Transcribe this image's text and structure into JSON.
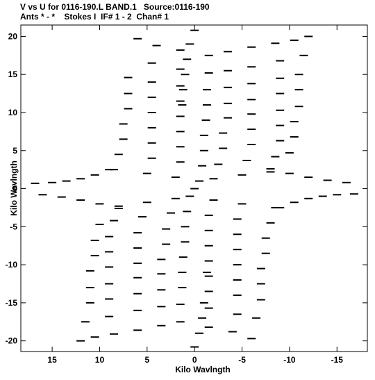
{
  "header": {
    "line1": "V vs U for 0116-190.L BAND.1   Source:0116-190",
    "line2": "Ants * - *    Stokes I  IF# 1 - 2  Chan# 1"
  },
  "chart_data": {
    "type": "scatter",
    "title": "V vs U for 0116-190.L BAND.1   Source:0116-190",
    "subtitle": "Ants * - *    Stokes I  IF# 1 - 2  Chan# 1",
    "xlabel": "Kilo Wavlngth",
    "ylabel": "Kilo Wavlngth",
    "xlim": [
      18.3,
      -18.2
    ],
    "ylim": [
      -21.4,
      21.5
    ],
    "x_reversed": true,
    "x_ticks": [
      15,
      10,
      5,
      0,
      -5,
      -10,
      -15
    ],
    "x_tick_labels": [
      "15",
      "10",
      "5",
      "0",
      "-5",
      "-10",
      "-15"
    ],
    "y_ticks": [
      20,
      15,
      10,
      5,
      0,
      -5,
      -10,
      -15,
      -20
    ],
    "y_tick_labels": [
      "20",
      "15",
      "10",
      "5",
      "0",
      "-5",
      "-10",
      "-15",
      "-20"
    ],
    "grid": false,
    "legend": "none",
    "marker": "short dash",
    "color": "#000000",
    "series": [
      {
        "points": [
          [
            -1.5,
            17.5
          ],
          [
            1.5,
            18.2
          ],
          [
            4.0,
            18.8
          ],
          [
            6.0,
            19.7
          ],
          [
            -3.5,
            18.0
          ],
          [
            -6.0,
            18.6
          ],
          [
            -8.5,
            19.1
          ],
          [
            -10.5,
            19.5
          ],
          [
            -12.0,
            20.0
          ],
          [
            -1.5,
            15.2
          ],
          [
            1.5,
            15.7
          ],
          [
            4.5,
            16.5
          ],
          [
            -3.5,
            15.5
          ],
          [
            -6.0,
            16.0
          ],
          [
            -9.0,
            16.8
          ],
          [
            -11.5,
            17.5
          ],
          [
            -1.3,
            13.0
          ],
          [
            1.5,
            13.5
          ],
          [
            4.5,
            14.0
          ],
          [
            7.0,
            14.6
          ],
          [
            -3.5,
            13.3
          ],
          [
            -6.0,
            13.8
          ],
          [
            -9.0,
            14.5
          ],
          [
            -11.0,
            15.0
          ],
          [
            -1.3,
            11.0
          ],
          [
            1.5,
            11.5
          ],
          [
            4.5,
            12.0
          ],
          [
            7.0,
            12.5
          ],
          [
            -3.5,
            11.2
          ],
          [
            -6.0,
            11.7
          ],
          [
            -9.0,
            12.5
          ],
          [
            -11.0,
            13.0
          ],
          [
            -1.2,
            9.0
          ],
          [
            1.5,
            9.5
          ],
          [
            4.5,
            10.0
          ],
          [
            7.0,
            10.5
          ],
          [
            -3.5,
            9.3
          ],
          [
            -6.0,
            9.8
          ],
          [
            -9.0,
            10.3
          ],
          [
            -11.0,
            10.8
          ],
          [
            -1.0,
            7.0
          ],
          [
            1.5,
            7.5
          ],
          [
            4.5,
            8.0
          ],
          [
            7.5,
            8.5
          ],
          [
            -3.0,
            7.3
          ],
          [
            -6.0,
            7.8
          ],
          [
            -9.0,
            8.3
          ],
          [
            -10.5,
            8.8
          ],
          [
            -1.0,
            5.0
          ],
          [
            1.5,
            5.5
          ],
          [
            4.5,
            6.0
          ],
          [
            7.5,
            6.5
          ],
          [
            -3.0,
            5.3
          ],
          [
            -6.0,
            5.8
          ],
          [
            -9.0,
            6.3
          ],
          [
            -10.5,
            6.8
          ],
          [
            -0.8,
            3.0
          ],
          [
            1.5,
            3.5
          ],
          [
            4.5,
            4.0
          ],
          [
            8.0,
            4.5
          ],
          [
            -2.5,
            3.2
          ],
          [
            -5.5,
            3.7
          ],
          [
            -8.5,
            4.2
          ],
          [
            -10.0,
            4.7
          ],
          [
            -0.5,
            1.0
          ],
          [
            2.0,
            1.5
          ],
          [
            5.0,
            2.0
          ],
          [
            8.5,
            2.5
          ],
          [
            -2.0,
            1.3
          ],
          [
            -5.0,
            1.8
          ],
          [
            -8.0,
            2.2
          ],
          [
            0.5,
            -1.0
          ],
          [
            -2.0,
            -1.5
          ],
          [
            -5.0,
            -2.0
          ],
          [
            -8.5,
            -2.5
          ],
          [
            2.0,
            -1.3
          ],
          [
            5.0,
            -1.8
          ],
          [
            8.0,
            -2.3
          ],
          [
            0.8,
            -3.0
          ],
          [
            -1.5,
            -3.5
          ],
          [
            -4.5,
            -4.0
          ],
          [
            -8.0,
            -4.5
          ],
          [
            2.5,
            -3.2
          ],
          [
            5.5,
            -3.7
          ],
          [
            8.5,
            -4.2
          ],
          [
            10.0,
            -4.7
          ],
          [
            1.0,
            -5.0
          ],
          [
            -1.5,
            -5.5
          ],
          [
            -4.5,
            -6.0
          ],
          [
            -7.5,
            -6.5
          ],
          [
            3.0,
            -5.3
          ],
          [
            6.0,
            -5.8
          ],
          [
            9.0,
            -6.3
          ],
          [
            10.5,
            -6.8
          ],
          [
            1.0,
            -7.0
          ],
          [
            -1.5,
            -7.5
          ],
          [
            -4.5,
            -8.0
          ],
          [
            -7.5,
            -8.5
          ],
          [
            3.0,
            -7.3
          ],
          [
            6.0,
            -7.8
          ],
          [
            9.0,
            -8.3
          ],
          [
            10.5,
            -8.8
          ],
          [
            1.2,
            -9.0
          ],
          [
            -1.5,
            -9.5
          ],
          [
            -4.5,
            -10.0
          ],
          [
            -7.0,
            -10.5
          ],
          [
            3.5,
            -9.3
          ],
          [
            6.0,
            -9.8
          ],
          [
            9.0,
            -10.3
          ],
          [
            11.0,
            -10.8
          ],
          [
            1.3,
            -11.0
          ],
          [
            -1.5,
            -11.5
          ],
          [
            -4.5,
            -12.0
          ],
          [
            -7.0,
            -12.5
          ],
          [
            3.5,
            -11.2
          ],
          [
            6.0,
            -11.7
          ],
          [
            9.0,
            -12.5
          ],
          [
            11.0,
            -13.0
          ],
          [
            1.3,
            -13.0
          ],
          [
            -1.5,
            -13.5
          ],
          [
            -4.5,
            -14.0
          ],
          [
            -7.0,
            -14.6
          ],
          [
            3.5,
            -13.3
          ],
          [
            6.0,
            -13.8
          ],
          [
            9.0,
            -14.5
          ],
          [
            11.0,
            -15.0
          ],
          [
            1.5,
            -15.2
          ],
          [
            -1.5,
            -15.7
          ],
          [
            -4.5,
            -16.5
          ],
          [
            -6.5,
            -17.0
          ],
          [
            3.5,
            -15.5
          ],
          [
            6.0,
            -16.0
          ],
          [
            9.0,
            -16.8
          ],
          [
            11.5,
            -17.5
          ],
          [
            1.5,
            -17.5
          ],
          [
            -1.5,
            -18.2
          ],
          [
            -4.0,
            -18.8
          ],
          [
            -6.0,
            -19.7
          ],
          [
            3.5,
            -18.0
          ],
          [
            6.0,
            -18.6
          ],
          [
            8.5,
            -19.1
          ],
          [
            10.5,
            -19.5
          ],
          [
            12.0,
            -20.0
          ],
          [
            0.0,
            20.8
          ],
          [
            0.5,
            19.0
          ],
          [
            0.8,
            17.0
          ],
          [
            1.0,
            15.0
          ],
          [
            1.2,
            13.0
          ],
          [
            1.3,
            11.0
          ],
          [
            0.0,
            0.0
          ],
          [
            -1.3,
            -11.0
          ],
          [
            -1.0,
            -15.0
          ],
          [
            -0.8,
            -17.0
          ],
          [
            -0.5,
            -19.0
          ],
          [
            0.0,
            -20.8
          ],
          [
            16.8,
            0.7
          ],
          [
            15.0,
            0.8
          ],
          [
            13.5,
            1.0
          ],
          [
            12.0,
            1.3
          ],
          [
            10.5,
            1.8
          ],
          [
            9.0,
            2.5
          ],
          [
            -16.8,
            -0.7
          ],
          [
            -15.0,
            -0.8
          ],
          [
            -13.5,
            -1.0
          ],
          [
            -12.0,
            -1.3
          ],
          [
            -10.5,
            -1.8
          ],
          [
            -9.0,
            -2.5
          ],
          [
            16.0,
            -0.8
          ],
          [
            14.0,
            -1.1
          ],
          [
            12.0,
            -1.5
          ],
          [
            10.0,
            -2.0
          ],
          [
            8.0,
            -2.6
          ],
          [
            -16.0,
            0.8
          ],
          [
            -14.0,
            1.1
          ],
          [
            -12.0,
            1.5
          ],
          [
            -10.0,
            2.0
          ],
          [
            -8.0,
            2.6
          ]
        ]
      }
    ]
  }
}
